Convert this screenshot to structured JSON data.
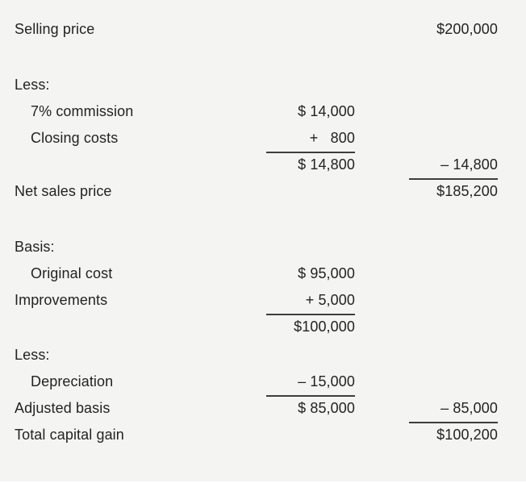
{
  "colors": {
    "paper": "#f4f4f2",
    "paper_bottom_strip": "#ffffff",
    "text": "#232323",
    "rule": "#3d3d3d"
  },
  "doc": {
    "rows": [
      {
        "label": "Selling price",
        "right": "$200,000"
      },
      {
        "label": "Less:"
      },
      {
        "label": "7% commission",
        "mid": "$ 14,000"
      },
      {
        "label": "Closing costs",
        "mid": "+   800"
      },
      {
        "mid": "$ 14,800",
        "right": "– 14,800"
      },
      {
        "label": "Net sales price",
        "right": "$185,200"
      },
      {
        "label": "Basis:"
      },
      {
        "label": "Original cost",
        "mid": "$ 95,000"
      },
      {
        "label": "Improvements",
        "mid": "+ 5,000"
      },
      {
        "mid": "$100,000"
      },
      {
        "label": "Less:"
      },
      {
        "label": "Depreciation",
        "mid": "– 15,000"
      },
      {
        "label": "Adjusted basis",
        "mid": "$ 85,000",
        "right": "– 85,000"
      },
      {
        "label": "Total capital gain",
        "right": "$100,200"
      }
    ]
  }
}
